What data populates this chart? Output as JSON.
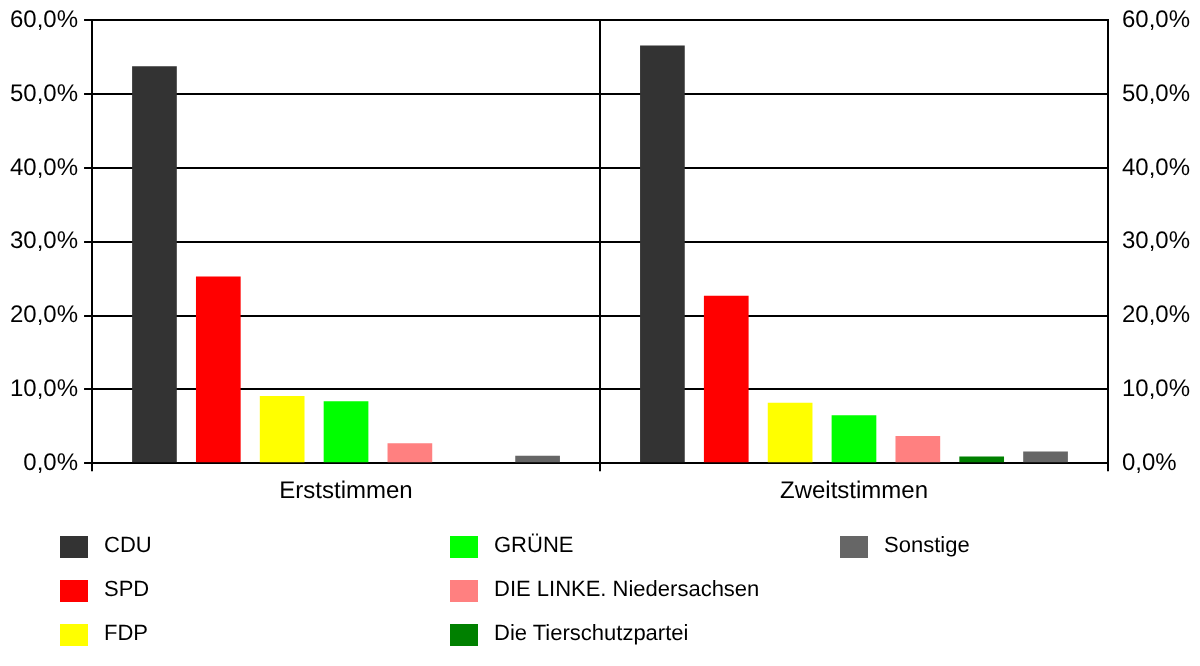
{
  "chart_data": {
    "type": "bar",
    "categories": [
      "Erststimmen",
      "Zweitstimmen"
    ],
    "series": [
      {
        "name": "CDU",
        "color": "#333333",
        "values": [
          53.8,
          56.6
        ]
      },
      {
        "name": "SPD",
        "color": "#ff0000",
        "values": [
          25.3,
          22.7
        ]
      },
      {
        "name": "FDP",
        "color": "#ffff00",
        "values": [
          9.1,
          8.2
        ]
      },
      {
        "name": "GRÜNE",
        "color": "#00ff00",
        "values": [
          8.4,
          6.5
        ]
      },
      {
        "name": "DIE LINKE. Niedersachsen",
        "color": "#ff8080",
        "values": [
          2.7,
          3.7
        ]
      },
      {
        "name": "Die Tierschutzpartei",
        "color": "#008000",
        "values": [
          null,
          0.9
        ]
      },
      {
        "name": "Sonstige",
        "color": "#666666",
        "values": [
          1.0,
          1.6
        ]
      }
    ],
    "ylim": [
      0,
      60
    ],
    "yticks": [
      {
        "value": 0,
        "label": "0,0%"
      },
      {
        "value": 10,
        "label": "10,0%"
      },
      {
        "value": 20,
        "label": "20,0%"
      },
      {
        "value": 30,
        "label": "30,0%"
      },
      {
        "value": 40,
        "label": "40,0%"
      },
      {
        "value": 50,
        "label": "50,0%"
      },
      {
        "value": 60,
        "label": "60,0%"
      }
    ],
    "y2lim": [
      0,
      60
    ],
    "y2ticks": [
      {
        "value": 0,
        "label": "0,0%"
      },
      {
        "value": 10,
        "label": "10,0%"
      },
      {
        "value": 20,
        "label": "20,0%"
      },
      {
        "value": 30,
        "label": "30,0%"
      },
      {
        "value": 40,
        "label": "40,0%"
      },
      {
        "value": 50,
        "label": "50,0%"
      },
      {
        "value": 60,
        "label": "60,0%"
      }
    ],
    "grid": true,
    "legend": "bottom"
  }
}
